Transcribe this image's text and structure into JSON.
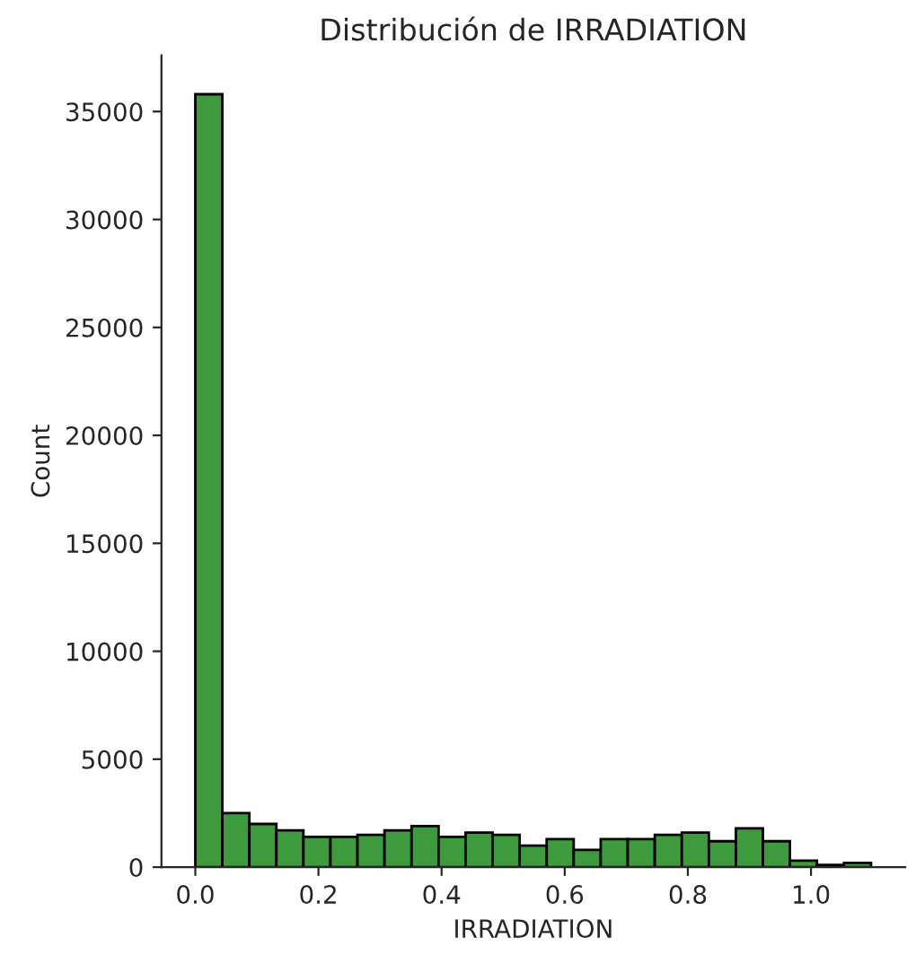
{
  "chart_data": {
    "type": "histogram",
    "title": "Distribución de IRRADIATION",
    "xlabel": "IRRADIATION",
    "ylabel": "Count",
    "bins": [
      0,
      0.0439,
      0.0878,
      0.1317,
      0.1756,
      0.2195,
      0.2634,
      0.3073,
      0.3512,
      0.3951,
      0.439,
      0.4829,
      0.5268,
      0.5707,
      0.6146,
      0.6585,
      0.7024,
      0.7463,
      0.7902,
      0.8341,
      0.878,
      0.9219,
      0.9658,
      1.0097,
      1.0536,
      1.0975
    ],
    "values": [
      35800,
      2500,
      2000,
      1700,
      1400,
      1400,
      1500,
      1700,
      1900,
      1400,
      1600,
      1500,
      1000,
      1300,
      800,
      1300,
      1300,
      1500,
      1600,
      1200,
      1800,
      1200,
      300,
      100,
      200
    ],
    "color": "#3d9a3d",
    "xlim": [
      -0.055,
      1.153
    ],
    "ylim": [
      0,
      37600
    ],
    "xticks": [
      {
        "value": 0,
        "label": "0.0"
      },
      0.2,
      0.4,
      0.6,
      0.8,
      {
        "value": 1,
        "label": "1.0"
      }
    ],
    "yticks": [
      0,
      5000,
      10000,
      15000,
      20000,
      25000,
      30000,
      35000
    ],
    "grid": false
  }
}
